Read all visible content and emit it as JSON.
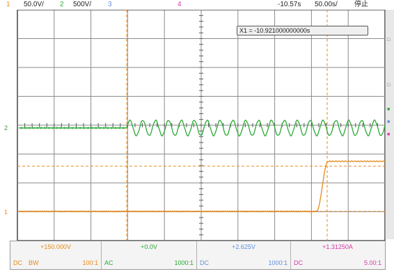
{
  "header": {
    "ch1": {
      "num": "1",
      "scale": "50.0V/"
    },
    "ch2": {
      "num": "2",
      "scale": "500V/"
    },
    "ch3": {
      "num": "3"
    },
    "ch4": {
      "num": "4"
    },
    "time_offset": "-10.57s",
    "time_scale": "50.00s/",
    "run_state": "停止"
  },
  "cursor": {
    "readout": "X1 = -10.921000000000s"
  },
  "channels": [
    {
      "offset": "+150.000V",
      "coupling": "DC",
      "bw": "BW",
      "ratio": "100:1"
    },
    {
      "offset": "+0.0V",
      "coupling": "AC",
      "ratio": "1000:1"
    },
    {
      "offset": "+2.625V",
      "coupling": "DC",
      "ratio": "1000:1"
    },
    {
      "offset": "+1.31250A",
      "coupling": "DC",
      "ratio": "5.00:1"
    }
  ],
  "colors": {
    "ch1": "#e88a1a",
    "ch2": "#2aa836",
    "ch3": "#5f8fe0",
    "ch4": "#d63aa8",
    "grid": "#8a8a8a"
  }
}
